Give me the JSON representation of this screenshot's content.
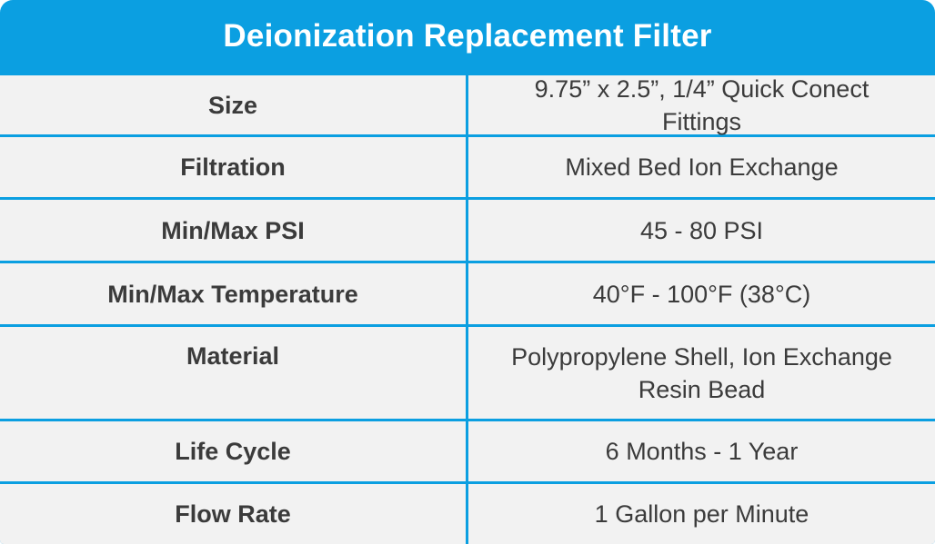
{
  "header": {
    "title": "Deionization Replacement Filter"
  },
  "table": {
    "rows": [
      [
        "Size",
        "9.75” x 2.5”, 1/4” Quick Conect Fittings"
      ],
      [
        "Filtration",
        "Mixed Bed Ion Exchange"
      ],
      [
        "Min/Max PSI",
        "45 - 80 PSI"
      ],
      [
        "Min/Max Temperature",
        "40°F - 100°F (38°C)"
      ],
      [
        "Material",
        "Polypropylene Shell, Ion Exchange Resin Bead"
      ],
      [
        "Life Cycle",
        "6 Months - 1 Year"
      ],
      [
        "Flow Rate",
        "1 Gallon per Minute"
      ]
    ]
  }
}
